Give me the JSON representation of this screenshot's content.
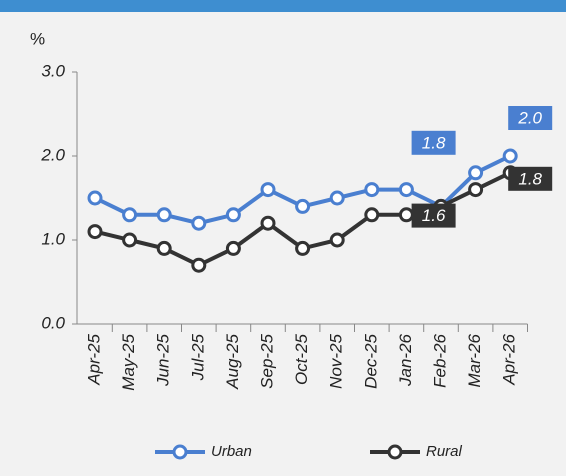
{
  "chart_data": {
    "type": "line",
    "y_label": "%",
    "categories": [
      "Apr-25",
      "May-25",
      "Jun-25",
      "Jul-25",
      "Aug-25",
      "Sep-25",
      "Oct-25",
      "Nov-25",
      "Dec-25",
      "Jan-26",
      "Feb-26",
      "Mar-26",
      "Apr-26"
    ],
    "series": [
      {
        "name": "Urban",
        "color": "#4a7fd0",
        "values": [
          1.5,
          1.3,
          1.3,
          1.2,
          1.3,
          1.6,
          1.4,
          1.5,
          1.6,
          1.6,
          1.4,
          1.8,
          2.0
        ],
        "value_labels": [
          null,
          null,
          null,
          null,
          null,
          null,
          null,
          null,
          null,
          null,
          null,
          "1.8",
          "2.0"
        ]
      },
      {
        "name": "Rural",
        "color": "#333333",
        "values": [
          1.1,
          1.0,
          0.9,
          0.7,
          0.9,
          1.2,
          0.9,
          1.0,
          1.3,
          1.3,
          1.4,
          1.6,
          1.8
        ],
        "value_labels": [
          null,
          null,
          null,
          null,
          null,
          null,
          null,
          null,
          null,
          null,
          null,
          "1.6",
          "1.8"
        ]
      }
    ],
    "ylim": [
      0,
      3
    ],
    "yticks": [
      {
        "value": 0,
        "label": "0.0"
      },
      {
        "value": 1,
        "label": "1.0"
      },
      {
        "value": 2,
        "label": "2.0"
      },
      {
        "value": 3,
        "label": "3.0"
      }
    ],
    "legend": "bottom"
  }
}
